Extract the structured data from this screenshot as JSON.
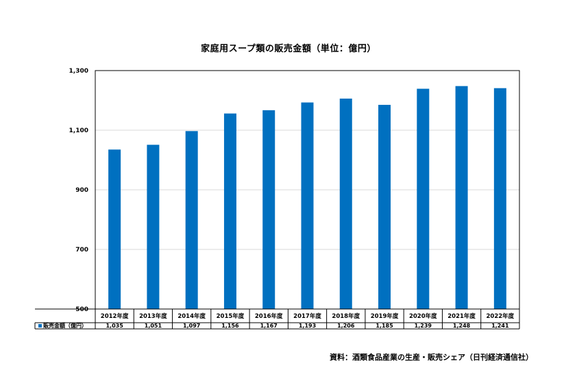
{
  "chart_data": {
    "type": "bar",
    "title": "家庭用スープ類の販売金額（単位：億円）",
    "categories": [
      "2012年度",
      "2013年度",
      "2014年度",
      "2015年度",
      "2016年度",
      "2017年度",
      "2018年度",
      "2019年度",
      "2020年度",
      "2021年度",
      "2022年度"
    ],
    "series": [
      {
        "name": "販売金額（億円）",
        "values": [
          1035,
          1051,
          1097,
          1156,
          1167,
          1193,
          1206,
          1185,
          1239,
          1248,
          1241
        ],
        "value_labels": [
          "1,035",
          "1,051",
          "1,097",
          "1,156",
          "1,167",
          "1,193",
          "1,206",
          "1,185",
          "1,239",
          "1,248",
          "1,241"
        ],
        "color": "#0070c0"
      }
    ],
    "ylim": [
      500,
      1300
    ],
    "yticks": [
      500,
      700,
      900,
      1100,
      1300
    ],
    "ytick_labels": [
      "500",
      "700",
      "900",
      "1,100",
      "1,300"
    ],
    "grid": true,
    "legend": "data-table"
  },
  "source": "資料：酒類食品産業の生産・販売シェア（日刊経済通信社）"
}
